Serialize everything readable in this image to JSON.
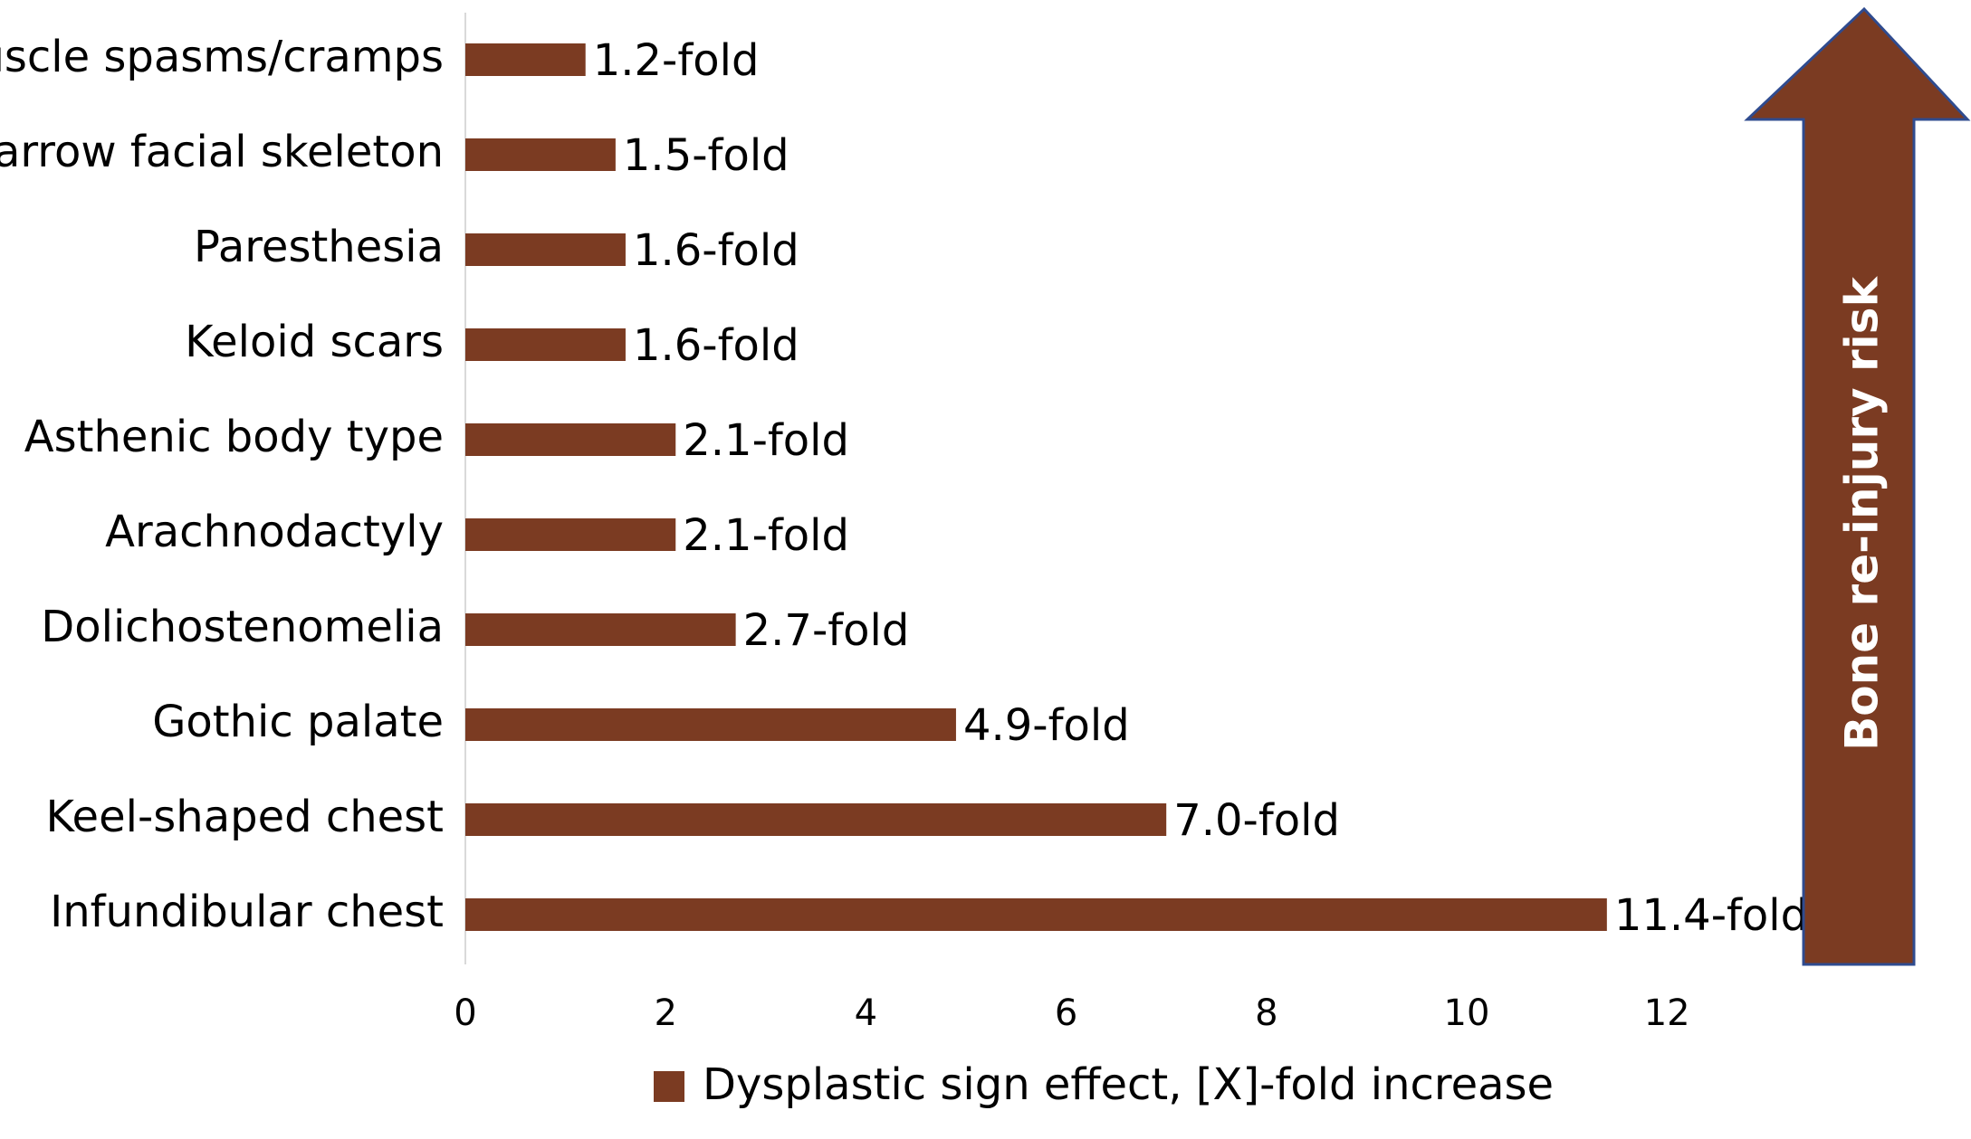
{
  "chart_data": {
    "type": "bar",
    "orientation": "horizontal",
    "categories": [
      "Muscle spasms/cramps",
      "Narrow facial skeleton",
      "Paresthesia",
      "Keloid scars",
      "Asthenic body type",
      "Arachnodactyly",
      "Dolichostenomelia",
      "Gothic palate",
      "Keel-shaped chest",
      "Infundibular chest"
    ],
    "values": [
      1.2,
      1.5,
      1.6,
      1.6,
      2.1,
      2.1,
      2.7,
      4.9,
      7.0,
      11.4
    ],
    "data_labels": [
      "1.2-fold",
      "1.5-fold",
      "1.6-fold",
      "1.6-fold",
      "2.1-fold",
      "2.1-fold",
      "2.7-fold",
      "4.9-fold",
      "7.0-fold",
      "11.4-fold"
    ],
    "series": [
      {
        "name": "Dysplastic sign effect, [X]-fold increase",
        "color": "#7b3b22"
      }
    ],
    "xlim": [
      0,
      12
    ],
    "xticks": [
      "0",
      "2",
      "4",
      "6",
      "8",
      "10",
      "12"
    ],
    "grid": false,
    "legend_position": "bottom",
    "annotation": {
      "type": "upward-arrow",
      "text": "Bone re-injury risk",
      "fill": "#7b3b22",
      "outline": "#2f4b8f"
    }
  }
}
